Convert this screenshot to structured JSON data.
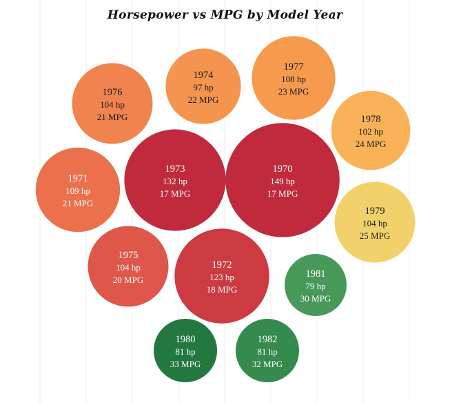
{
  "chart_data": {
    "type": "bubble",
    "title": "Horsepower vs MPG by Model Year",
    "grid": "vertical",
    "bubbles": [
      {
        "year": "1976",
        "hp_label": "104 hp",
        "mpg_label": "21 MPG",
        "hp": 104,
        "mpg": 21,
        "color": "#F0834E"
      },
      {
        "year": "1974",
        "hp_label": "97 hp",
        "mpg_label": "22 MPG",
        "hp": 97,
        "mpg": 22,
        "color": "#F4944F"
      },
      {
        "year": "1977",
        "hp_label": "108 hp",
        "mpg_label": "23 MPG",
        "hp": 108,
        "mpg": 23,
        "color": "#F69A4E"
      },
      {
        "year": "1978",
        "hp_label": "102 hp",
        "mpg_label": "24 MPG",
        "hp": 102,
        "mpg": 24,
        "color": "#F9B257"
      },
      {
        "year": "1971",
        "hp_label": "109 hp",
        "mpg_label": "21 MPG",
        "hp": 109,
        "mpg": 21,
        "color": "#EB704C"
      },
      {
        "year": "1973",
        "hp_label": "132 hp",
        "mpg_label": "17 MPG",
        "hp": 132,
        "mpg": 17,
        "color": "#C02A3C"
      },
      {
        "year": "1970",
        "hp_label": "149 hp",
        "mpg_label": "17 MPG",
        "hp": 149,
        "mpg": 17,
        "color": "#C02A3C"
      },
      {
        "year": "1979",
        "hp_label": "104 hp",
        "mpg_label": "25 MPG",
        "hp": 104,
        "mpg": 25,
        "color": "#F2D06A"
      },
      {
        "year": "1975",
        "hp_label": "104 hp",
        "mpg_label": "20 MPG",
        "hp": 104,
        "mpg": 20,
        "color": "#DE574A"
      },
      {
        "year": "1972",
        "hp_label": "123 hp",
        "mpg_label": "18 MPG",
        "hp": 123,
        "mpg": 18,
        "color": "#CC3B41"
      },
      {
        "year": "1981",
        "hp_label": "79 hp",
        "mpg_label": "30 MPG",
        "hp": 79,
        "mpg": 30,
        "color": "#48985A"
      },
      {
        "year": "1980",
        "hp_label": "81 hp",
        "mpg_label": "33 MPG",
        "hp": 81,
        "mpg": 33,
        "color": "#237840"
      },
      {
        "year": "1982",
        "hp_label": "81 hp",
        "mpg_label": "32 MPG",
        "hp": 81,
        "mpg": 32,
        "color": "#358A4E"
      }
    ]
  }
}
